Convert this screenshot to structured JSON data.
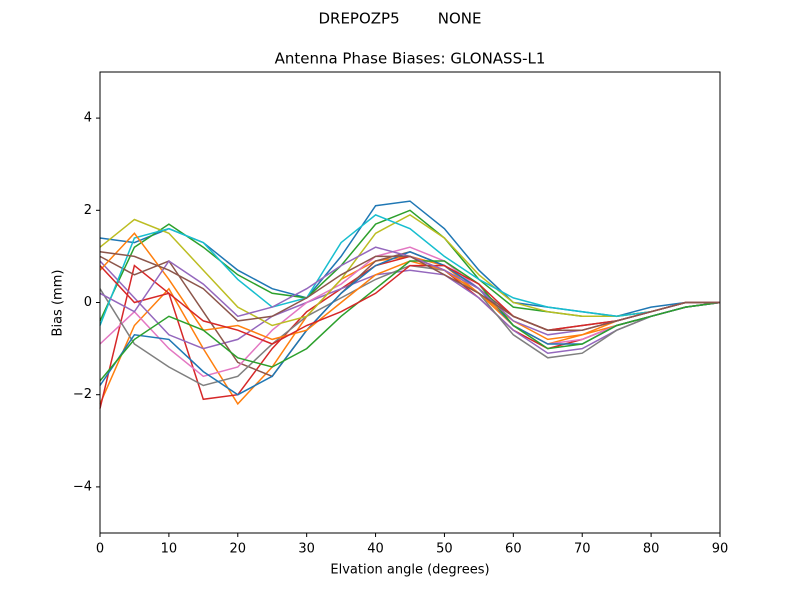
{
  "chart_data": {
    "type": "line",
    "suptitle": "DREPOZP5        NONE",
    "title": "Antenna Phase Biases: GLONASS-L1",
    "xlabel": "Elvation angle (degrees)",
    "ylabel": "Bias (mm)",
    "x": [
      0,
      5,
      10,
      15,
      20,
      25,
      30,
      35,
      40,
      45,
      50,
      55,
      60,
      65,
      70,
      75,
      80,
      85,
      90
    ],
    "xlim": [
      0,
      90
    ],
    "xticks": [
      0,
      10,
      20,
      30,
      40,
      50,
      60,
      70,
      80,
      90
    ],
    "ylim": [
      -5,
      5
    ],
    "yticks": [
      {
        "value": -4,
        "label": "−4"
      },
      {
        "value": -2,
        "label": "−2"
      },
      0,
      2,
      4
    ],
    "series": [
      {
        "color": "#1f77b4",
        "values": [
          1.4,
          1.3,
          1.6,
          1.3,
          0.7,
          0.3,
          0.1,
          1.0,
          2.1,
          2.2,
          1.6,
          0.7,
          0.0,
          -0.1,
          -0.2,
          -0.3,
          -0.1,
          0.0,
          0
        ]
      },
      {
        "color": "#ff7f0e",
        "values": [
          -2.2,
          -0.5,
          0.3,
          -1.0,
          -2.2,
          -1.4,
          -0.3,
          0.5,
          0.9,
          1.0,
          0.8,
          0.2,
          -0.5,
          -0.9,
          -0.7,
          -0.5,
          -0.3,
          -0.1,
          0
        ]
      },
      {
        "color": "#2ca02c",
        "values": [
          -0.4,
          1.2,
          1.7,
          1.2,
          0.6,
          0.2,
          0.1,
          0.8,
          1.7,
          2.0,
          1.4,
          0.5,
          -0.1,
          -0.2,
          -0.3,
          -0.3,
          -0.2,
          0.0,
          0
        ]
      },
      {
        "color": "#d62728",
        "values": [
          -2.3,
          0.8,
          0.2,
          -2.1,
          -2.0,
          -1.0,
          -0.2,
          0.3,
          0.8,
          1.0,
          0.7,
          0.1,
          -0.6,
          -1.0,
          -0.8,
          -0.5,
          -0.3,
          -0.1,
          0
        ]
      },
      {
        "color": "#9467bd",
        "values": [
          0.9,
          0.1,
          -0.7,
          -1.0,
          -0.8,
          -0.3,
          0.0,
          0.3,
          0.6,
          0.7,
          0.6,
          0.1,
          -0.6,
          -1.1,
          -1.0,
          -0.6,
          -0.3,
          -0.1,
          0
        ]
      },
      {
        "color": "#8c564b",
        "values": [
          1.0,
          0.6,
          0.9,
          -0.2,
          -1.3,
          -1.6,
          -0.6,
          0.2,
          0.9,
          1.1,
          0.8,
          0.3,
          -0.3,
          -0.6,
          -0.5,
          -0.4,
          -0.2,
          0.0,
          0
        ]
      },
      {
        "color": "#e377c2",
        "values": [
          -0.9,
          -0.2,
          -1.0,
          -1.6,
          -1.4,
          -0.6,
          0.0,
          0.4,
          1.0,
          1.2,
          0.9,
          0.3,
          -0.5,
          -0.9,
          -0.8,
          -0.5,
          -0.3,
          -0.1,
          0
        ]
      },
      {
        "color": "#7f7f7f",
        "values": [
          0.3,
          -0.9,
          -1.4,
          -1.8,
          -1.6,
          -0.9,
          -0.3,
          0.1,
          0.5,
          0.8,
          0.7,
          0.2,
          -0.7,
          -1.2,
          -1.1,
          -0.6,
          -0.3,
          -0.1,
          0
        ]
      },
      {
        "color": "#bcbd22",
        "values": [
          1.2,
          1.8,
          1.5,
          0.7,
          -0.1,
          -0.5,
          -0.3,
          0.5,
          1.5,
          1.9,
          1.4,
          0.6,
          0.0,
          -0.2,
          -0.3,
          -0.3,
          -0.2,
          0.0,
          0
        ]
      },
      {
        "color": "#17becf",
        "values": [
          -0.5,
          1.4,
          1.6,
          1.3,
          0.5,
          -0.1,
          0.1,
          1.3,
          1.9,
          1.6,
          1.0,
          0.5,
          0.1,
          -0.1,
          -0.2,
          -0.3,
          -0.2,
          0.0,
          0
        ]
      },
      {
        "color": "#1f77b4",
        "values": [
          -1.8,
          -0.7,
          -0.8,
          -1.5,
          -2.0,
          -1.6,
          -0.6,
          0.2,
          0.8,
          1.1,
          0.8,
          0.3,
          -0.5,
          -0.9,
          -0.9,
          -0.5,
          -0.3,
          -0.1,
          0
        ]
      },
      {
        "color": "#ff7f0e",
        "values": [
          0.7,
          1.5,
          0.5,
          -0.6,
          -0.5,
          -0.8,
          -0.6,
          0.0,
          0.6,
          0.9,
          0.7,
          0.2,
          -0.4,
          -0.8,
          -0.7,
          -0.4,
          -0.2,
          0.0,
          0
        ]
      },
      {
        "color": "#2ca02c",
        "values": [
          -1.7,
          -0.8,
          -0.3,
          -0.6,
          -1.2,
          -1.4,
          -1.0,
          -0.3,
          0.3,
          0.9,
          0.9,
          0.4,
          -0.5,
          -1.0,
          -0.9,
          -0.5,
          -0.3,
          -0.1,
          0
        ]
      },
      {
        "color": "#d62728",
        "values": [
          0.8,
          0.0,
          0.2,
          -0.4,
          -0.6,
          -0.9,
          -0.5,
          -0.2,
          0.2,
          0.8,
          0.8,
          0.4,
          -0.3,
          -0.6,
          -0.5,
          -0.4,
          -0.2,
          0.0,
          0
        ]
      },
      {
        "color": "#9467bd",
        "values": [
          0.2,
          -0.2,
          0.9,
          0.4,
          -0.3,
          -0.1,
          0.3,
          0.8,
          1.2,
          1.0,
          0.7,
          0.3,
          -0.4,
          -0.7,
          -0.6,
          -0.4,
          -0.2,
          0.0,
          0
        ]
      },
      {
        "color": "#8c564b",
        "values": [
          1.1,
          1.0,
          0.7,
          0.3,
          -0.4,
          -0.3,
          0.1,
          0.6,
          1.0,
          1.0,
          0.6,
          0.2,
          -0.3,
          -0.6,
          -0.6,
          -0.4,
          -0.2,
          0.0,
          0
        ]
      }
    ]
  }
}
